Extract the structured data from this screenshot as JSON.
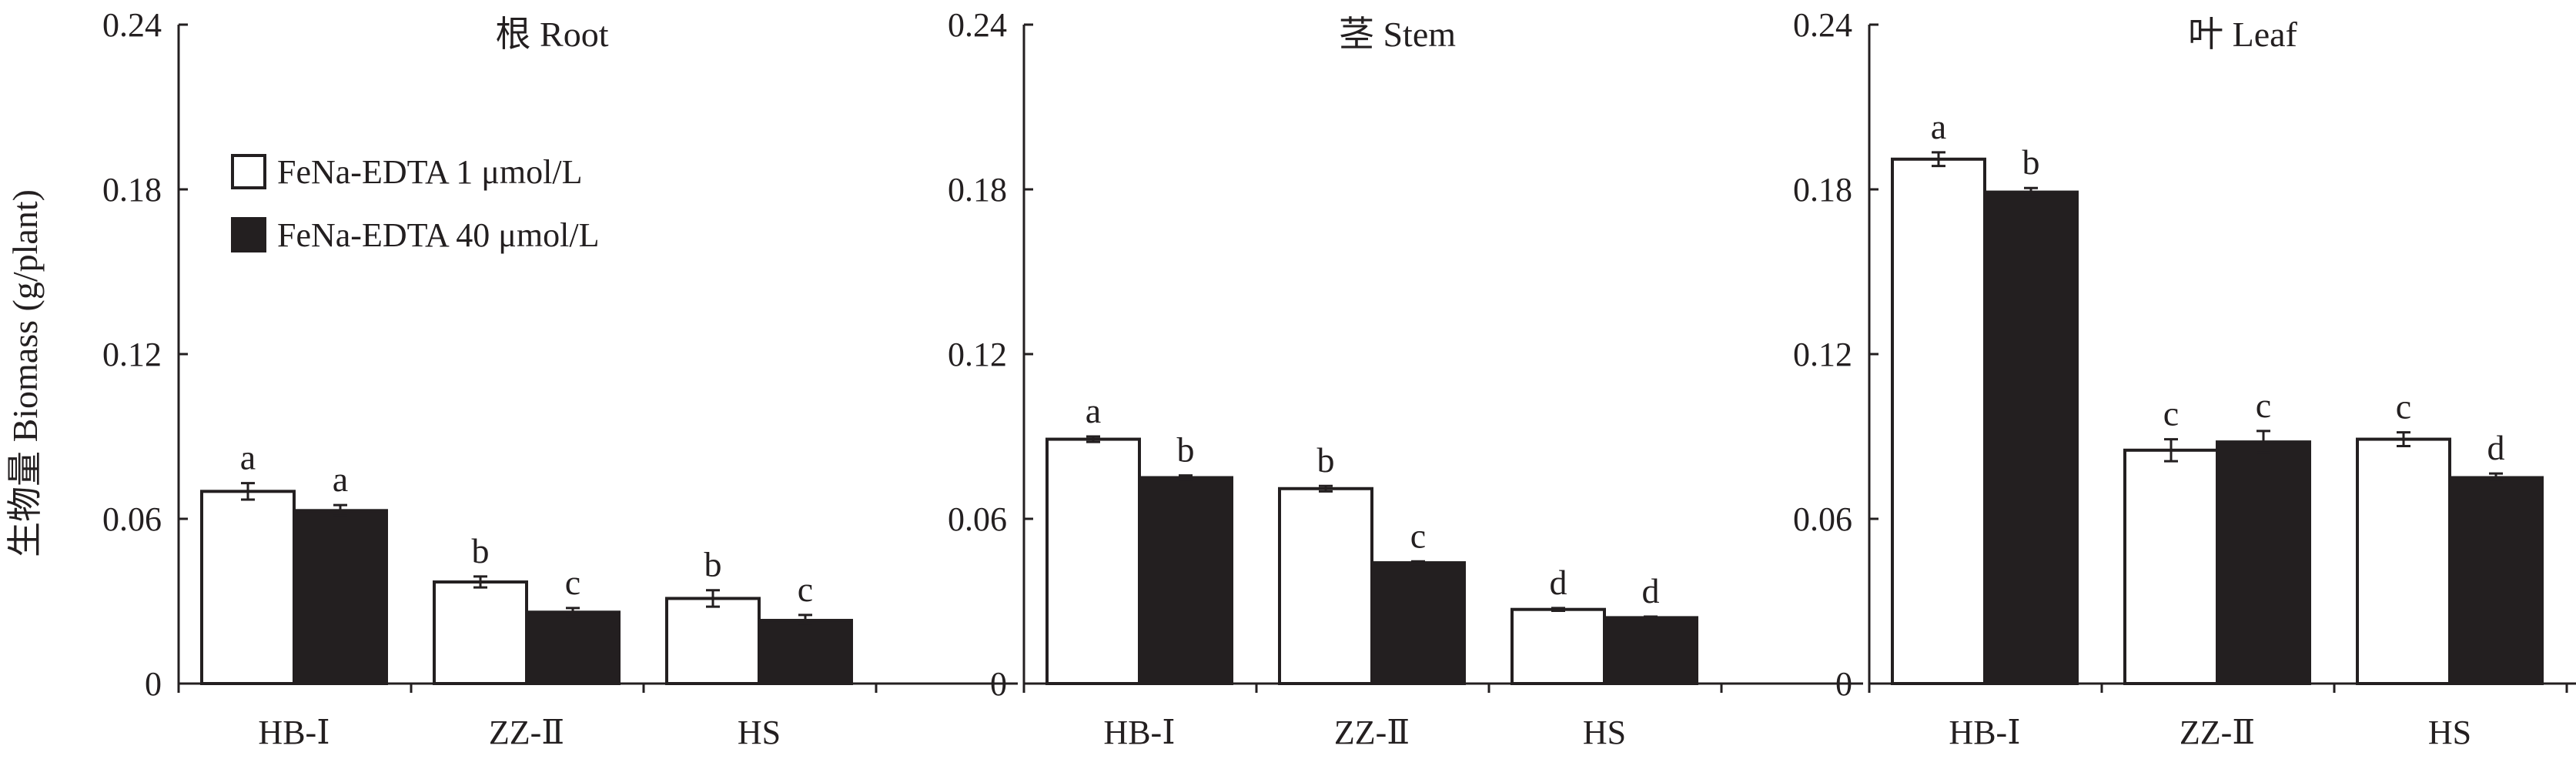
{
  "figure": {
    "ylabel": "生物量 Biomass (g/plant)",
    "colors": {
      "series_1": "#ffffff",
      "series_2": "#231f20",
      "ink": "#231f20"
    },
    "legend": {
      "placement": "upper-left of first panel",
      "items": [
        "FeNa-EDTA 1 μmol/L",
        "FeNa-EDTA 40 μmol/L"
      ]
    }
  },
  "chart_data": [
    {
      "type": "bar",
      "title": "根 Root",
      "categories": [
        "HB-Ⅰ",
        "ZZ-Ⅱ",
        "HS"
      ],
      "ylim": [
        0,
        0.24
      ],
      "yticks": [
        "0",
        "0.06",
        "0.12",
        "0.18",
        "0.24"
      ],
      "grid": false,
      "series": [
        {
          "name": "FeNa-EDTA 1 μmol/L",
          "values": [
            0.07,
            0.037,
            0.031
          ],
          "errors": [
            0.003,
            0.002,
            0.003
          ],
          "letters": [
            "a",
            "b",
            "b"
          ]
        },
        {
          "name": "FeNa-EDTA 40 μmol/L",
          "values": [
            0.063,
            0.026,
            0.023
          ],
          "errors": [
            0.002,
            0.0015,
            0.002
          ],
          "letters": [
            "a",
            "c",
            "c"
          ]
        }
      ]
    },
    {
      "type": "bar",
      "title": "茎 Stem",
      "categories": [
        "HB-Ⅰ",
        "ZZ-Ⅱ",
        "HS"
      ],
      "ylim": [
        0,
        0.24
      ],
      "yticks": [
        "0",
        "0.06",
        "0.12",
        "0.18",
        "0.24"
      ],
      "grid": false,
      "series": [
        {
          "name": "FeNa-EDTA 1 μmol/L",
          "values": [
            0.089,
            0.071,
            0.027
          ],
          "errors": [
            0.001,
            0.001,
            0.0005
          ],
          "letters": [
            "a",
            "b",
            "d"
          ]
        },
        {
          "name": "FeNa-EDTA 40 μmol/L",
          "values": [
            0.075,
            0.044,
            0.024
          ],
          "errors": [
            0.0008,
            0.0005,
            0.0004
          ],
          "letters": [
            "b",
            "c",
            "d"
          ]
        }
      ]
    },
    {
      "type": "bar",
      "title": "叶 Leaf",
      "categories": [
        "HB-Ⅰ",
        "ZZ-Ⅱ",
        "HS"
      ],
      "ylim": [
        0,
        0.24
      ],
      "yticks": [
        "0",
        "0.06",
        "0.12",
        "0.18",
        "0.24"
      ],
      "grid": false,
      "series": [
        {
          "name": "FeNa-EDTA 1 μmol/L",
          "values": [
            0.191,
            0.085,
            0.089
          ],
          "errors": [
            0.0025,
            0.004,
            0.0025
          ],
          "letters": [
            "a",
            "c",
            "c"
          ]
        },
        {
          "name": "FeNa-EDTA 40 μmol/L",
          "values": [
            0.179,
            0.088,
            0.075
          ],
          "errors": [
            0.0015,
            0.004,
            0.0015
          ],
          "letters": [
            "b",
            "c",
            "d"
          ]
        }
      ]
    }
  ]
}
